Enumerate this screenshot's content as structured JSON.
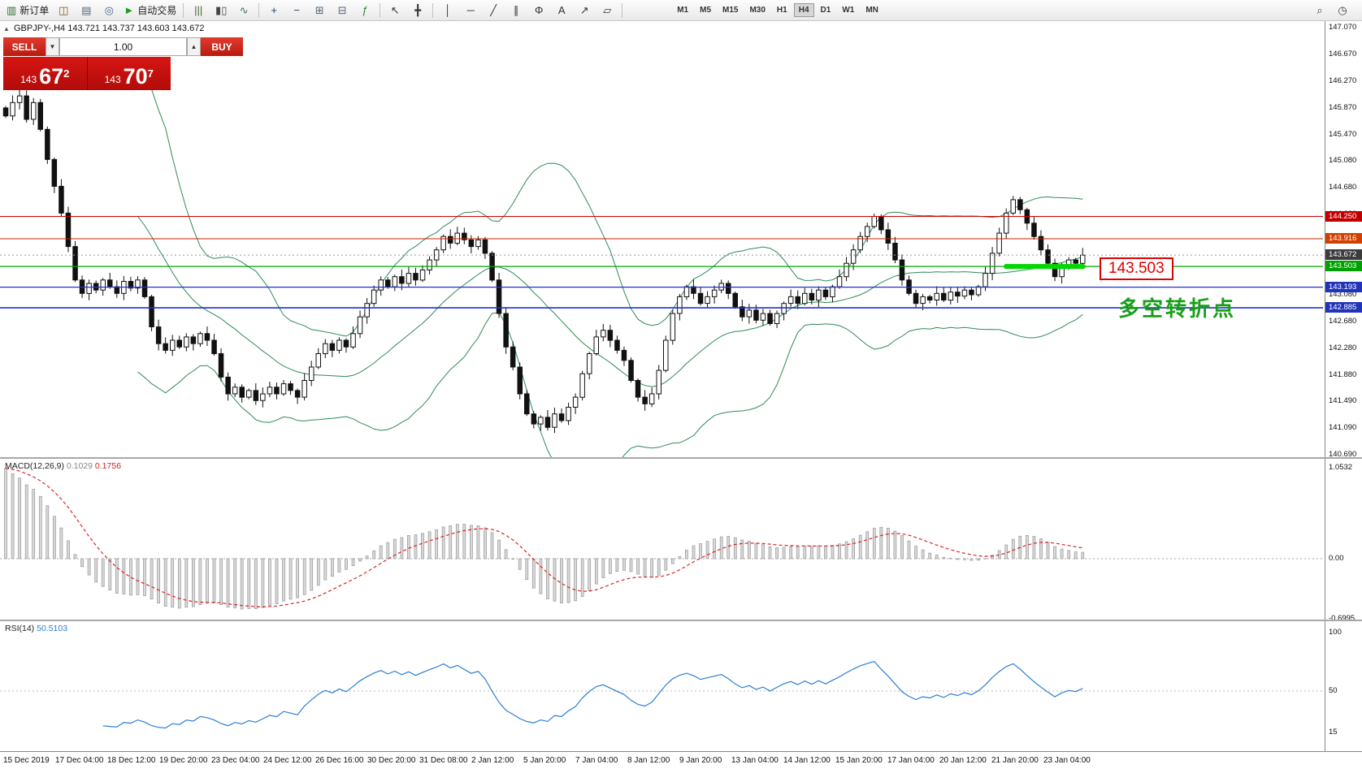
{
  "toolbar": {
    "buttons": [
      {
        "name": "new-order-button",
        "glyph": "▥",
        "label": "新订单",
        "color": "#2f6f2f"
      },
      {
        "name": "chart-window-icon",
        "glyph": "◫",
        "color": "#7a5c20"
      },
      {
        "name": "profiles-icon",
        "glyph": "▤",
        "color": "#556677"
      },
      {
        "name": "market-watch-icon",
        "glyph": "◎",
        "color": "#446688"
      },
      {
        "name": "autotrading-button",
        "glyph": "►",
        "label": "自动交易",
        "color": "#1f9d1f"
      },
      {
        "sep": true
      },
      {
        "name": "bar-chart-icon",
        "glyph": "|||",
        "color": "#44662f"
      },
      {
        "name": "candlestick-icon",
        "glyph": "▮▯",
        "color": "#444444"
      },
      {
        "name": "line-chart-icon",
        "glyph": "∿",
        "color": "#337755"
      },
      {
        "sep": true
      },
      {
        "name": "zoom-in-icon",
        "glyph": "+",
        "color": "#224466"
      },
      {
        "name": "zoom-out-icon",
        "glyph": "−",
        "color": "#224466"
      },
      {
        "name": "tile-windows-icon",
        "glyph": "⊞",
        "color": "#556677"
      },
      {
        "name": "auto-arrange-icon",
        "glyph": "⊟",
        "color": "#556677"
      },
      {
        "name": "indicators-icon",
        "glyph": "ƒ",
        "color": "#228833"
      },
      {
        "sep": true
      },
      {
        "name": "cursor-icon",
        "glyph": "↖",
        "color": "#333333"
      },
      {
        "name": "crosshair-icon",
        "glyph": "╋",
        "color": "#333333"
      },
      {
        "sep": true
      },
      {
        "name": "vertical-line-icon",
        "glyph": "│",
        "color": "#333333"
      },
      {
        "name": "horizontal-line-icon",
        "glyph": "─",
        "color": "#333333"
      },
      {
        "name": "trendline-icon",
        "glyph": "╱",
        "color": "#333333"
      },
      {
        "name": "channel-icon",
        "glyph": "∥",
        "color": "#333333"
      },
      {
        "name": "fibonacci-icon",
        "glyph": "Φ",
        "color": "#333333"
      },
      {
        "name": "text-icon",
        "glyph": "A",
        "color": "#333333"
      },
      {
        "name": "arrows-icon",
        "glyph": "↗",
        "color": "#333333"
      },
      {
        "name": "shapes-icon",
        "glyph": "▱",
        "color": "#333333"
      },
      {
        "sep": true
      }
    ],
    "timeframes": [
      "M1",
      "M5",
      "M15",
      "M30",
      "H1",
      "H4",
      "D1",
      "W1",
      "MN"
    ],
    "active_timeframe": "H4",
    "right_icons": [
      {
        "name": "search-icon",
        "glyph": "⌕"
      },
      {
        "name": "quick-nav-icon",
        "glyph": "◷"
      }
    ]
  },
  "chart": {
    "collapse_icon": "▲",
    "symbol_line": "GBPJPY-,H4  143.721 143.737 143.603 143.672",
    "trade_panel": {
      "sell": "SELL",
      "buy": "BUY",
      "volume": "1.00",
      "spin_down": "▼",
      "spin_up": "▲",
      "sell_price": {
        "prefix": "143",
        "big": "67",
        "sup": "2"
      },
      "buy_price": {
        "prefix": "143",
        "big": "70",
        "sup": "7"
      }
    },
    "callout": "143.503",
    "annotation": "多空转折点",
    "levels": [
      {
        "price": 144.25,
        "color": "#cc0000",
        "width": 1
      },
      {
        "price": 143.916,
        "color": "#cc2200",
        "width": 1
      },
      {
        "price": 143.672,
        "color": "#999999",
        "width": 1,
        "dash": "2 3"
      },
      {
        "price": 143.503,
        "color": "#00aa00",
        "width": 1.2
      },
      {
        "price": 143.193,
        "color": "#2233cc",
        "width": 1.3
      },
      {
        "price": 142.885,
        "color": "#2233cc",
        "width": 1.6
      }
    ],
    "highlight": {
      "price": 143.503,
      "color": "#00d800"
    },
    "price_tags": [
      {
        "label": "144.250",
        "price": 144.25,
        "bg": "#c00000"
      },
      {
        "label": "143.916",
        "price": 143.916,
        "bg": "#d24000"
      },
      {
        "label": "143.672",
        "price": 143.672,
        "bg": "#3c3c3c"
      },
      {
        "label": "143.503",
        "price": 143.503,
        "bg": "#00a000"
      },
      {
        "label": "143.193",
        "price": 143.193,
        "bg": "#2233bb"
      },
      {
        "label": "142.885",
        "price": 142.885,
        "bg": "#2233bb"
      }
    ]
  },
  "chart_data": {
    "type": "candlestick",
    "symbol": "GBPJPY-",
    "timeframe": "H4",
    "y_range": [
      140.69,
      147.07
    ],
    "y_ticks": [
      "147.070",
      "146.670",
      "146.270",
      "145.870",
      "145.470",
      "145.080",
      "144.680",
      "144.280",
      "143.880",
      "143.480",
      "143.080",
      "142.680",
      "142.280",
      "141.880",
      "141.490",
      "141.090",
      "140.690"
    ],
    "x_labels": [
      "15 Dec 2019",
      "17 Dec 04:00",
      "18 Dec 12:00",
      "19 Dec 20:00",
      "23 Dec 04:00",
      "24 Dec 12:00",
      "26 Dec 16:00",
      "30 Dec 20:00",
      "31 Dec 08:00",
      "2 Jan 12:00",
      "5 Jan 20:00",
      "7 Jan 04:00",
      "8 Jan 12:00",
      "9 Jan 20:00",
      "13 Jan 04:00",
      "14 Jan 12:00",
      "15 Jan 20:00",
      "17 Jan 04:00",
      "20 Jan 12:00",
      "21 Jan 20:00",
      "23 Jan 04:00"
    ],
    "closes": [
      145.75,
      145.95,
      146.05,
      145.7,
      145.95,
      145.55,
      145.1,
      144.7,
      144.3,
      143.8,
      143.3,
      143.1,
      143.25,
      143.15,
      143.3,
      143.2,
      143.1,
      143.28,
      143.18,
      143.3,
      143.05,
      142.6,
      142.35,
      142.25,
      142.4,
      142.3,
      142.45,
      142.35,
      142.5,
      142.4,
      142.2,
      141.85,
      141.6,
      141.7,
      141.55,
      141.65,
      141.5,
      141.6,
      141.7,
      141.6,
      141.75,
      141.65,
      141.55,
      141.8,
      142.0,
      142.2,
      142.35,
      142.25,
      142.4,
      142.3,
      142.5,
      142.75,
      142.95,
      143.15,
      143.3,
      143.2,
      143.35,
      143.25,
      143.4,
      143.3,
      143.45,
      143.6,
      143.75,
      143.95,
      143.85,
      144.0,
      143.9,
      143.8,
      143.9,
      143.7,
      143.3,
      142.8,
      142.3,
      142.0,
      141.6,
      141.3,
      141.15,
      141.25,
      141.1,
      141.3,
      141.2,
      141.4,
      141.55,
      141.9,
      142.2,
      142.45,
      142.55,
      142.4,
      142.25,
      142.1,
      141.8,
      141.55,
      141.45,
      141.6,
      141.95,
      142.4,
      142.8,
      143.05,
      143.2,
      143.1,
      142.95,
      143.05,
      143.15,
      143.25,
      143.1,
      142.9,
      142.75,
      142.85,
      142.7,
      142.8,
      142.65,
      142.8,
      142.95,
      143.05,
      142.95,
      143.1,
      143.0,
      143.15,
      143.05,
      143.2,
      143.35,
      143.55,
      143.75,
      143.95,
      144.1,
      144.25,
      144.05,
      143.85,
      143.6,
      143.3,
      143.1,
      142.95,
      143.05,
      143.0,
      143.1,
      143.0,
      143.12,
      143.06,
      143.15,
      143.08,
      143.2,
      143.4,
      143.7,
      144.0,
      144.3,
      144.5,
      144.35,
      144.15,
      143.95,
      143.75,
      143.55,
      143.35,
      143.5,
      143.6,
      143.55,
      143.672
    ],
    "indicators": {
      "bollinger": {
        "period": 20,
        "deviation": 2,
        "color": "#2e8b57"
      },
      "macd": {
        "label": "MACD(12,26,9)",
        "value_main": "0.1029",
        "value_signal": "0.1756",
        "axis": [
          "1.0532",
          "0.00",
          "-0.6995"
        ]
      },
      "rsi": {
        "label": "RSI(14)",
        "value": "50.5103",
        "axis": [
          "100",
          "50",
          "15"
        ],
        "color": "#2a7fd4"
      }
    }
  }
}
